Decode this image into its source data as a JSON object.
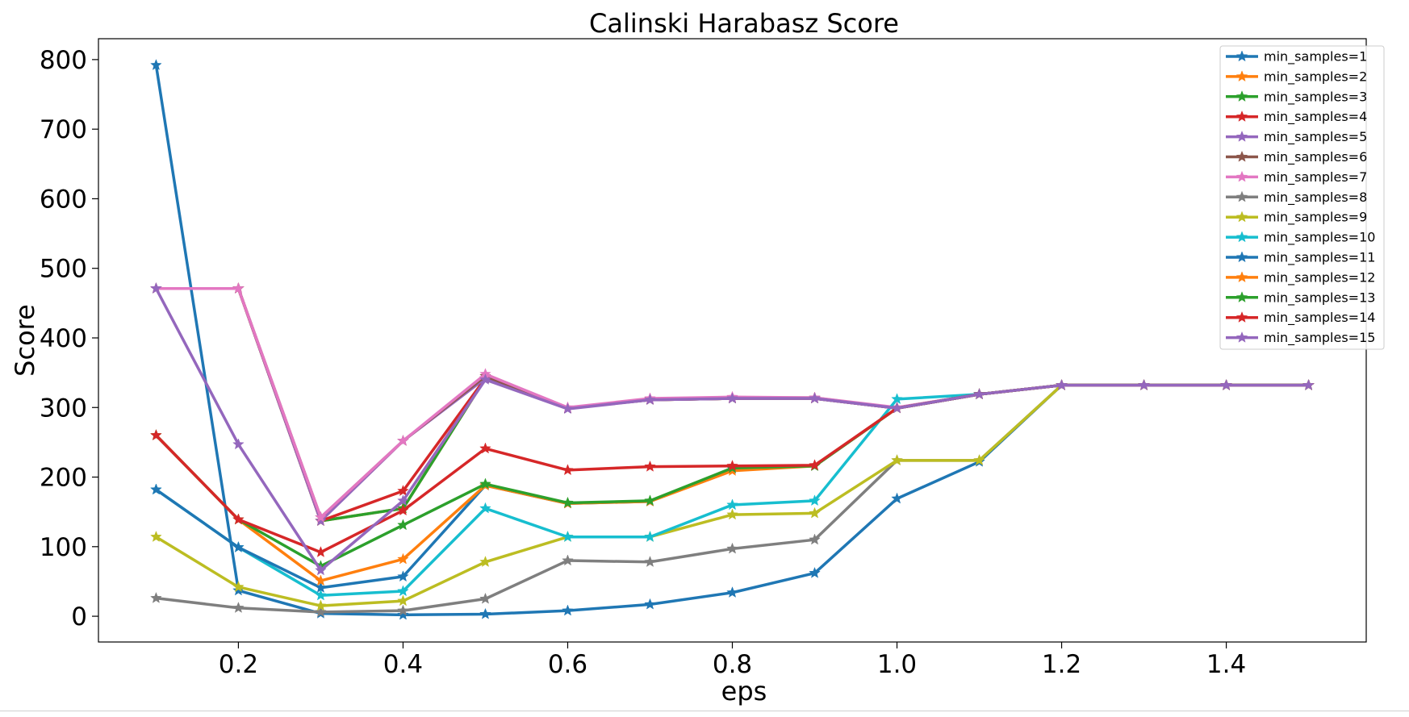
{
  "chart_data": {
    "type": "line",
    "title": "Calinski Harabasz Score",
    "xlabel": "eps",
    "ylabel": "Score",
    "x": [
      0.1,
      0.2,
      0.3,
      0.4,
      0.5,
      0.6,
      0.7,
      0.8,
      0.9,
      1.0,
      1.1,
      1.2,
      1.3,
      1.4,
      1.5
    ],
    "xlim": [
      0.03,
      1.57
    ],
    "ylim": [
      -37,
      830
    ],
    "xticks": [
      "0.2",
      "0.4",
      "0.6",
      "0.8",
      "1.0",
      "1.2",
      "1.4"
    ],
    "xtick_values": [
      0.2,
      0.4,
      0.6,
      0.8,
      1.0,
      1.2,
      1.4
    ],
    "yticks": [
      "0",
      "100",
      "200",
      "300",
      "400",
      "500",
      "600",
      "700",
      "800"
    ],
    "ytick_values": [
      0,
      100,
      200,
      300,
      400,
      500,
      600,
      700,
      800
    ],
    "grid": false,
    "legend_position": "top-right",
    "marker": "star",
    "series": [
      {
        "name": "min_samples=1",
        "color": "#1f77b4",
        "values": [
          792,
          37,
          4,
          2,
          3,
          8,
          17,
          34,
          62,
          169,
          222,
          332,
          332,
          332,
          332
        ]
      },
      {
        "name": "min_samples=2",
        "color": "#ff7f0e",
        "values": [
          471,
          471,
          137,
          155,
          342,
          299,
          311,
          313,
          313,
          299,
          319,
          332,
          332,
          332,
          332
        ]
      },
      {
        "name": "min_samples=3",
        "color": "#2ca02c",
        "values": [
          471,
          471,
          137,
          155,
          342,
          299,
          311,
          313,
          313,
          299,
          319,
          332,
          332,
          332,
          332
        ]
      },
      {
        "name": "min_samples=4",
        "color": "#d62728",
        "values": [
          471,
          471,
          137,
          180,
          342,
          299,
          311,
          313,
          313,
          299,
          319,
          332,
          332,
          332,
          332
        ]
      },
      {
        "name": "min_samples=5",
        "color": "#9467bd",
        "values": [
          471,
          471,
          137,
          252,
          342,
          299,
          311,
          313,
          313,
          299,
          319,
          332,
          332,
          332,
          332
        ]
      },
      {
        "name": "min_samples=6",
        "color": "#8c564b",
        "values": [
          471,
          471,
          142,
          252,
          345,
          299,
          312,
          314,
          314,
          299,
          319,
          332,
          332,
          332,
          332
        ]
      },
      {
        "name": "min_samples=7",
        "color": "#e377c2",
        "values": [
          471,
          471,
          142,
          252,
          348,
          300,
          313,
          315,
          314,
          300,
          319,
          332,
          332,
          332,
          332
        ]
      },
      {
        "name": "min_samples=8",
        "color": "#7f7f7f",
        "values": [
          26,
          12,
          6,
          8,
          25,
          80,
          78,
          97,
          110,
          224,
          224,
          332,
          332,
          332,
          332
        ]
      },
      {
        "name": "min_samples=9",
        "color": "#bcbd22",
        "values": [
          114,
          42,
          15,
          22,
          78,
          114,
          114,
          146,
          148,
          224,
          224,
          332,
          332,
          332,
          332
        ]
      },
      {
        "name": "min_samples=10",
        "color": "#17becf",
        "values": [
          182,
          99,
          30,
          36,
          155,
          114,
          114,
          160,
          166,
          312,
          319,
          332,
          332,
          332,
          332
        ]
      },
      {
        "name": "min_samples=11",
        "color": "#1f77b4",
        "values": [
          182,
          99,
          41,
          57,
          188,
          162,
          165,
          212,
          216,
          299,
          319,
          332,
          332,
          332,
          332
        ]
      },
      {
        "name": "min_samples=12",
        "color": "#ff7f0e",
        "values": [
          260,
          139,
          51,
          82,
          188,
          162,
          165,
          209,
          216,
          299,
          319,
          332,
          332,
          332,
          332
        ]
      },
      {
        "name": "min_samples=13",
        "color": "#2ca02c",
        "values": [
          260,
          139,
          72,
          131,
          190,
          163,
          166,
          213,
          216,
          299,
          319,
          332,
          332,
          332,
          332
        ]
      },
      {
        "name": "min_samples=14",
        "color": "#d62728",
        "values": [
          260,
          139,
          92,
          152,
          241,
          210,
          215,
          216,
          217,
          299,
          319,
          332,
          332,
          332,
          332
        ]
      },
      {
        "name": "min_samples=15",
        "color": "#9467bd",
        "values": [
          471,
          247,
          66,
          166,
          340,
          298,
          311,
          313,
          313,
          299,
          319,
          332,
          332,
          332,
          332
        ]
      }
    ]
  }
}
